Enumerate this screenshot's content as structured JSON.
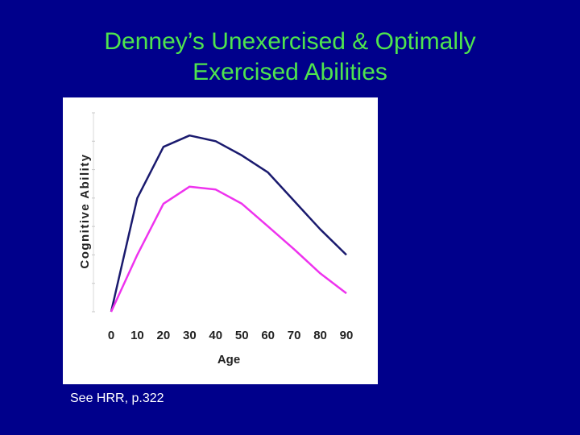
{
  "slide": {
    "title_line1": "Denney’s Unexercised & Optimally",
    "title_line2": "Exercised Abilities",
    "footnote": "See HRR, p.322",
    "background_color": "#00008b",
    "title_color": "#4ee44e"
  },
  "chart_data": {
    "type": "line",
    "title": "",
    "xlabel": "Age",
    "ylabel": "Cognitive Ability",
    "x": [
      0,
      10,
      20,
      30,
      40,
      50,
      60,
      70,
      80,
      90
    ],
    "xlim": [
      0,
      90
    ],
    "ylim": [
      0,
      7
    ],
    "y_tick_labels_shown": false,
    "grid": false,
    "legend_position": "right",
    "series": [
      {
        "name": "Optimally Exercised",
        "color": "#1a1a6e",
        "values": [
          0,
          4.0,
          5.8,
          6.2,
          6.0,
          5.5,
          4.9,
          3.9,
          2.9,
          2.0
        ]
      },
      {
        "name": "Unexercised",
        "color": "#ee33ee",
        "values": [
          0,
          2.0,
          3.8,
          4.4,
          4.3,
          3.8,
          3.0,
          2.2,
          1.35,
          0.65
        ]
      }
    ]
  }
}
